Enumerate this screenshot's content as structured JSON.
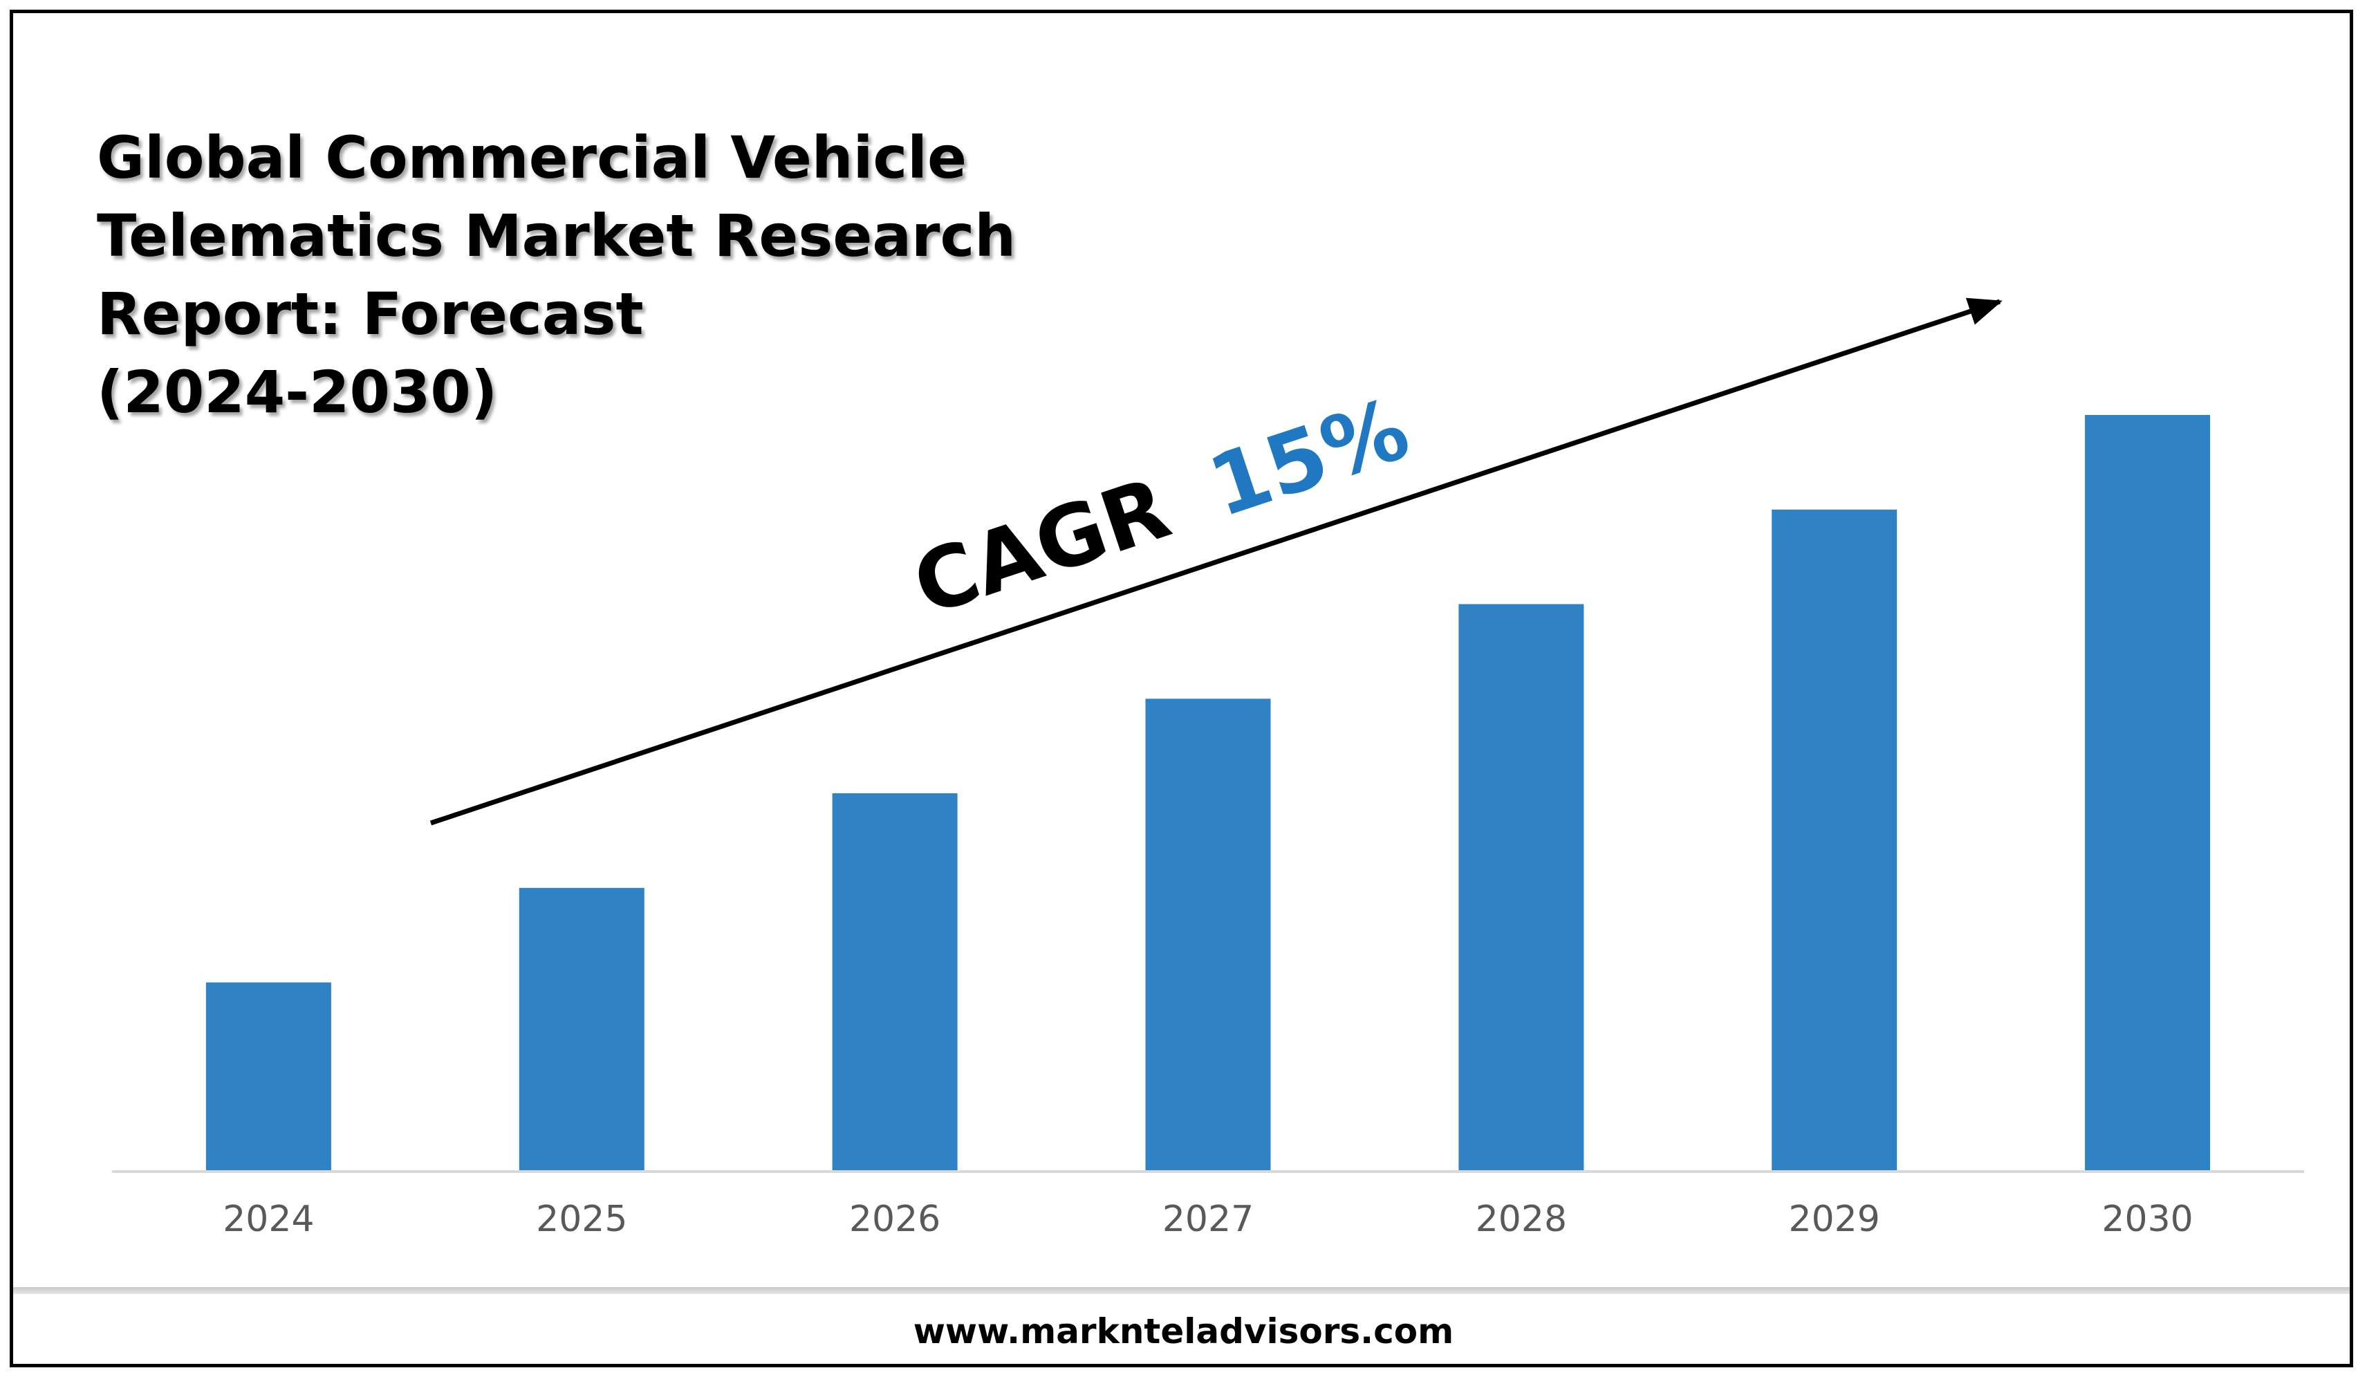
{
  "chart_data": {
    "type": "bar",
    "title": "Global Commercial Vehicle Telematics Market Research Report: Forecast (2024-2030)",
    "title_lines": [
      "Global Commercial Vehicle",
      "Telematics Market Research",
      "Report: Forecast",
      "(2024-2030)"
    ],
    "categories": [
      "2024",
      "2025",
      "2026",
      "2027",
      "2028",
      "2029",
      "2030"
    ],
    "values": [
      2,
      3,
      4,
      5,
      6,
      7,
      8
    ],
    "ylim": [
      0,
      8
    ],
    "grid": false,
    "legend": "none",
    "bar_color": "#2f83c4",
    "annotation": {
      "label": "CAGR",
      "value": "15%",
      "label_color": "#000000",
      "value_color": "#1f78c1"
    }
  },
  "footer": {
    "url": "www.marknteladvisors.com"
  }
}
